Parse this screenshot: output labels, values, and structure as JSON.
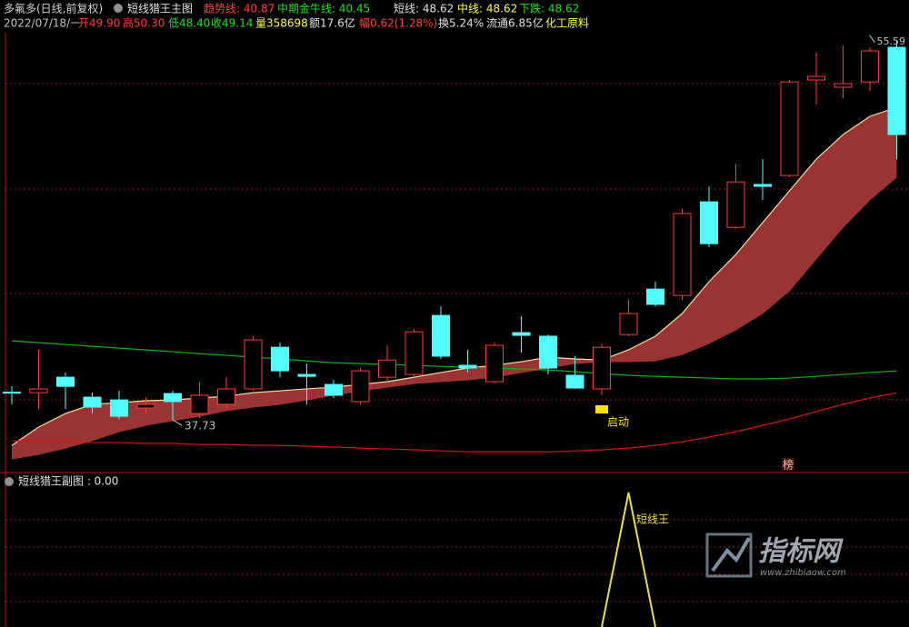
{
  "header": {
    "row1": [
      {
        "text": "多氟多(日线,前复权)",
        "color": "#d0d0d0"
      },
      {
        "text": "趋势线: 40.87",
        "color": "#ff4040"
      },
      {
        "text": "中期金牛线: 40.45",
        "color": "#20e020"
      },
      {
        "text": "短线: 48.62",
        "color": "#e0e0e0"
      },
      {
        "text": "中线: 48.62",
        "color": "#ffff40"
      },
      {
        "text": "下跌: 48.62",
        "color": "#20e020"
      }
    ],
    "row2": [
      {
        "text": "2022/07/18/一",
        "color": "#c0c0c0"
      },
      {
        "text": "开49.90",
        "color": "#ff4040"
      },
      {
        "text": "高50.30",
        "color": "#ff4040"
      },
      {
        "text": "低48.40",
        "color": "#20e020"
      },
      {
        "text": "收49.14",
        "color": "#20e020"
      },
      {
        "text": "量358698",
        "color": "#ffff40"
      },
      {
        "text": "额17.6亿",
        "color": "#e0e0e0"
      },
      {
        "text": "幅0.62(1.28%)",
        "color": "#ff4040"
      },
      {
        "text": "换5.24%",
        "color": "#e0e0e0"
      },
      {
        "text": "流通6.85亿",
        "color": "#e0e0e0"
      },
      {
        "text": "化工原料",
        "color": "#ffff40"
      }
    ]
  },
  "chart_data": [
    {
      "type": "candlestick",
      "title": "短线猎王主图",
      "categories": [
        null,
        null,
        null,
        null,
        null,
        null,
        null,
        null,
        null,
        null,
        null,
        null,
        null,
        null,
        null,
        null,
        null,
        null,
        null,
        null,
        null,
        null,
        null,
        null,
        null,
        null,
        null,
        null,
        null,
        null,
        null,
        null,
        null,
        null
      ],
      "open": [
        39.01,
        39.01,
        39.74,
        38.8,
        38.67,
        38.29,
        38.97,
        38.03,
        38.46,
        39.19,
        41.15,
        39.87,
        39.4,
        38.59,
        39.74,
        39.87,
        42.65,
        40.3,
        39.53,
        41.84,
        41.67,
        39.83,
        39.19,
        41.75,
        43.89,
        43.59,
        48.0,
        46.8,
        48.82,
        49.24,
        53.74,
        53.4,
        53.65,
        55.28
      ],
      "high": [
        39.31,
        41.03,
        39.96,
        39.01,
        39.1,
        38.8,
        39.1,
        39.53,
        39.74,
        41.67,
        41.37,
        40.38,
        39.61,
        40.17,
        41.24,
        42.01,
        43.08,
        41.03,
        41.37,
        42.61,
        41.75,
        40.73,
        41.33,
        43.38,
        44.24,
        47.66,
        48.73,
        49.8,
        50.01,
        53.74,
        55.02,
        55.36,
        55.28,
        55.59
      ],
      "low": [
        38.46,
        38.24,
        38.24,
        38.03,
        37.77,
        38.03,
        37.73,
        37.82,
        38.24,
        39.1,
        39.74,
        38.46,
        38.76,
        38.46,
        39.53,
        39.74,
        40.6,
        39.96,
        39.44,
        40.9,
        39.87,
        39.19,
        38.89,
        41.67,
        43.08,
        43.38,
        45.86,
        46.72,
        48.09,
        49.16,
        52.58,
        52.88,
        53.22,
        50.01
      ],
      "close": [
        39.01,
        39.19,
        39.31,
        38.33,
        37.9,
        38.46,
        38.59,
        38.89,
        39.19,
        41.5,
        40.04,
        39.78,
        38.89,
        40.04,
        40.55,
        41.88,
        40.73,
        40.17,
        41.24,
        41.71,
        40.17,
        39.23,
        41.15,
        42.74,
        43.17,
        47.45,
        46.03,
        48.94,
        48.73,
        53.65,
        53.91,
        53.57,
        55.11,
        51.17
      ],
      "up_color": "#ff3c3c",
      "down_color": "#54fcfc",
      "band": {
        "color": "#9a3434",
        "edge_color": "#f0e0a0",
        "upper": [
          36.53,
          37.39,
          38.03,
          38.46,
          38.54,
          38.63,
          38.67,
          38.76,
          38.84,
          39.01,
          39.1,
          39.19,
          39.27,
          39.4,
          39.53,
          39.74,
          39.96,
          40.17,
          40.3,
          40.47,
          40.68,
          40.6,
          40.55,
          41.03,
          41.67,
          42.74,
          44.24,
          45.52,
          47.02,
          48.52,
          50.01,
          51.17,
          52.03,
          52.45
        ],
        "lower": [
          35.89,
          36.1,
          36.4,
          36.75,
          37.17,
          37.47,
          37.69,
          37.9,
          38.16,
          38.33,
          38.46,
          38.67,
          38.89,
          39.1,
          39.27,
          39.44,
          39.53,
          39.61,
          39.74,
          39.96,
          40.17,
          40.38,
          40.47,
          40.47,
          40.51,
          40.81,
          41.33,
          41.97,
          42.74,
          43.81,
          45.31,
          46.8,
          48.09,
          49.16
        ]
      },
      "series": [
        {
          "color": "#10b010",
          "values": [
            41.45,
            41.37,
            41.28,
            41.2,
            41.11,
            41.03,
            40.94,
            40.85,
            40.77,
            40.68,
            40.6,
            40.51,
            40.42,
            40.38,
            40.34,
            40.3,
            40.25,
            40.21,
            40.17,
            40.13,
            40.08,
            40.0,
            39.91,
            39.83,
            39.78,
            39.74,
            39.7,
            39.66,
            39.66,
            39.7,
            39.78,
            39.87,
            39.96,
            40.04
          ]
        },
        {
          "color": "#d01818",
          "values": [
            36.75,
            36.7,
            36.7,
            36.66,
            36.66,
            36.62,
            36.62,
            36.57,
            36.57,
            36.53,
            36.53,
            36.49,
            36.45,
            36.4,
            36.36,
            36.32,
            36.27,
            36.23,
            36.23,
            36.23,
            36.23,
            36.27,
            36.32,
            36.4,
            36.53,
            36.7,
            36.92,
            37.17,
            37.47,
            37.77,
            38.12,
            38.46,
            38.76,
            39.01
          ]
        }
      ],
      "ylim": [
        35.25,
        56.01
      ],
      "low_label": 37.73,
      "high_label": 55.59,
      "signal_text": "启动",
      "badge_text": "榜"
    },
    {
      "type": "line",
      "title": "短线猎王副图 : 0.00",
      "color": "#e8e040",
      "annotation": "短线王",
      "values": [
        null,
        null,
        null,
        null,
        null,
        null,
        null,
        null,
        null,
        null,
        null,
        null,
        null,
        null,
        null,
        null,
        null,
        null,
        null,
        null,
        null,
        null,
        0,
        1,
        0,
        null,
        null,
        null,
        null,
        null,
        null,
        null,
        null,
        null
      ],
      "ylim": [
        0,
        1
      ]
    }
  ],
  "watermark": {
    "title": "指标网",
    "url": "www.zhibiaow.com"
  }
}
